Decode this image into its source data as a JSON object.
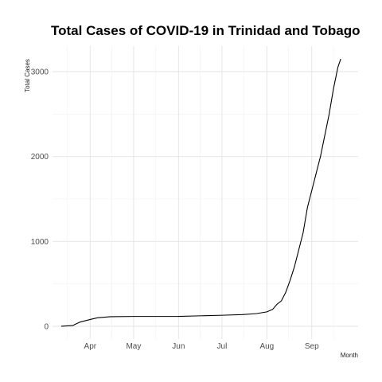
{
  "chart_data": {
    "type": "line",
    "title": "Total Cases of COVID-19 in Trinidad and Tobago",
    "xlabel": "Month",
    "ylabel": "Total Cases",
    "x_ticks": [
      "Apr",
      "May",
      "Jun",
      "Jul",
      "Aug",
      "Sep"
    ],
    "y_ticks": [
      0,
      1000,
      2000,
      3000
    ],
    "ylim": [
      -150,
      3300
    ],
    "xlim": [
      "2020-03-06",
      "2020-10-03"
    ],
    "grid": true,
    "series": [
      {
        "points": [
          [
            "2020-03-12",
            1
          ],
          [
            "2020-03-20",
            9
          ],
          [
            "2020-03-25",
            50
          ],
          [
            "2020-04-01",
            80
          ],
          [
            "2020-04-06",
            100
          ],
          [
            "2020-04-15",
            113
          ],
          [
            "2020-05-01",
            116
          ],
          [
            "2020-06-01",
            117
          ],
          [
            "2020-06-15",
            123
          ],
          [
            "2020-07-01",
            130
          ],
          [
            "2020-07-15",
            138
          ],
          [
            "2020-07-25",
            150
          ],
          [
            "2020-08-01",
            170
          ],
          [
            "2020-08-05",
            200
          ],
          [
            "2020-08-08",
            260
          ],
          [
            "2020-08-11",
            300
          ],
          [
            "2020-08-14",
            400
          ],
          [
            "2020-08-17",
            540
          ],
          [
            "2020-08-20",
            700
          ],
          [
            "2020-08-23",
            900
          ],
          [
            "2020-08-26",
            1100
          ],
          [
            "2020-08-29",
            1400
          ],
          [
            "2020-09-01",
            1600
          ],
          [
            "2020-09-04",
            1800
          ],
          [
            "2020-09-07",
            2000
          ],
          [
            "2020-09-10",
            2250
          ],
          [
            "2020-09-13",
            2500
          ],
          [
            "2020-09-16",
            2800
          ],
          [
            "2020-09-19",
            3050
          ],
          [
            "2020-09-21",
            3150
          ]
        ]
      }
    ]
  }
}
